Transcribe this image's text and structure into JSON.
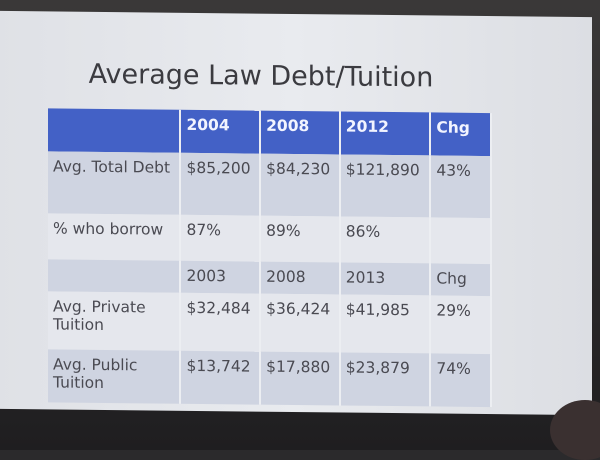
{
  "slide": {
    "title": "Average Law Debt/Tuition",
    "colors": {
      "header": "#4361c6",
      "shaded_row": "#cfd4e1",
      "plain_row": "#e5e7ed"
    },
    "table": {
      "header": [
        "",
        "2004",
        "2008",
        "2012",
        "Chg"
      ],
      "rows": [
        [
          "Avg. Total Debt",
          "$85,200",
          "$84,230",
          "$121,890",
          "43%"
        ],
        [
          "% who borrow",
          "87%",
          "89%",
          "86%",
          ""
        ],
        [
          "",
          "2003",
          "2008",
          "2013",
          "Chg"
        ],
        [
          "Avg. Private Tuition",
          "$32,484",
          "$36,424",
          "$41,985",
          "29%"
        ],
        [
          "Avg. Public Tuition",
          "$13,742",
          "$17,880",
          "$23,879",
          "74%"
        ]
      ]
    }
  }
}
